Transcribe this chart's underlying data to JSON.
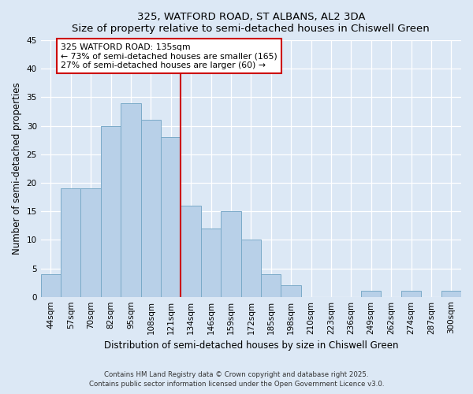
{
  "title": "325, WATFORD ROAD, ST ALBANS, AL2 3DA",
  "subtitle": "Size of property relative to semi-detached houses in Chiswell Green",
  "xlabel": "Distribution of semi-detached houses by size in Chiswell Green",
  "ylabel": "Number of semi-detached properties",
  "categories": [
    "44sqm",
    "57sqm",
    "70sqm",
    "82sqm",
    "95sqm",
    "108sqm",
    "121sqm",
    "134sqm",
    "146sqm",
    "159sqm",
    "172sqm",
    "185sqm",
    "198sqm",
    "210sqm",
    "223sqm",
    "236sqm",
    "249sqm",
    "262sqm",
    "274sqm",
    "287sqm",
    "300sqm"
  ],
  "values": [
    4,
    19,
    19,
    30,
    34,
    31,
    28,
    16,
    12,
    15,
    10,
    4,
    2,
    0,
    0,
    0,
    1,
    0,
    1,
    0,
    1
  ],
  "bar_color": "#b8d0e8",
  "bar_edge_color": "#7aaac8",
  "highlight_index": 7,
  "annotation_title": "325 WATFORD ROAD: 135sqm",
  "annotation_line1": "← 73% of semi-detached houses are smaller (165)",
  "annotation_line2": "27% of semi-detached houses are larger (60) →",
  "annotation_box_color": "#ffffff",
  "annotation_box_edge": "#cc0000",
  "vline_color": "#cc0000",
  "ylim": [
    0,
    45
  ],
  "yticks": [
    0,
    5,
    10,
    15,
    20,
    25,
    30,
    35,
    40,
    45
  ],
  "bg_color": "#dce8f5",
  "grid_color": "#ffffff",
  "footer1": "Contains HM Land Registry data © Crown copyright and database right 2025.",
  "footer2": "Contains public sector information licensed under the Open Government Licence v3.0."
}
